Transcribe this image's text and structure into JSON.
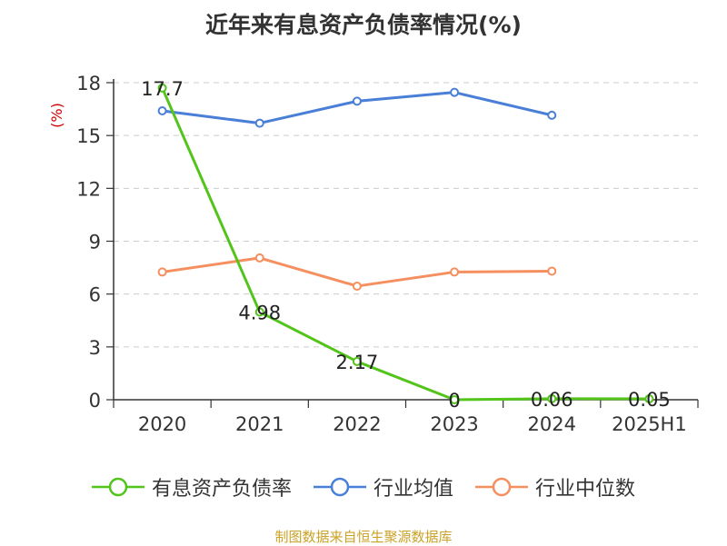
{
  "title": "近年来有息资产负债率情况(%)",
  "footer": "制图数据来自恒生聚源数据库",
  "chart_data": {
    "type": "line",
    "title": "近年来有息资产负债率情况(%)",
    "ylabel": "(%)",
    "xlabel": "",
    "categories": [
      "2020",
      "2021",
      "2022",
      "2023",
      "2024",
      "2025H1"
    ],
    "ylim": [
      0,
      18
    ],
    "yticks": [
      0,
      3,
      6,
      9,
      12,
      15,
      18
    ],
    "grid": true,
    "legend_position": "bottom",
    "series": [
      {
        "name": "有息资产负债率",
        "color": "#52c41a",
        "values": [
          17.7,
          4.98,
          2.17,
          0,
          0.06,
          0.05
        ],
        "labels": [
          "17.7",
          "4.98",
          "2.17",
          "0",
          "0.06",
          "0.05"
        ]
      },
      {
        "name": "行业均值",
        "color": "#4a7fd8",
        "values": [
          16.4,
          15.7,
          16.95,
          17.45,
          16.15,
          null
        ]
      },
      {
        "name": "行业中位数",
        "color": "#f58f5f",
        "values": [
          7.25,
          8.05,
          6.45,
          7.25,
          7.3,
          null
        ]
      }
    ]
  }
}
